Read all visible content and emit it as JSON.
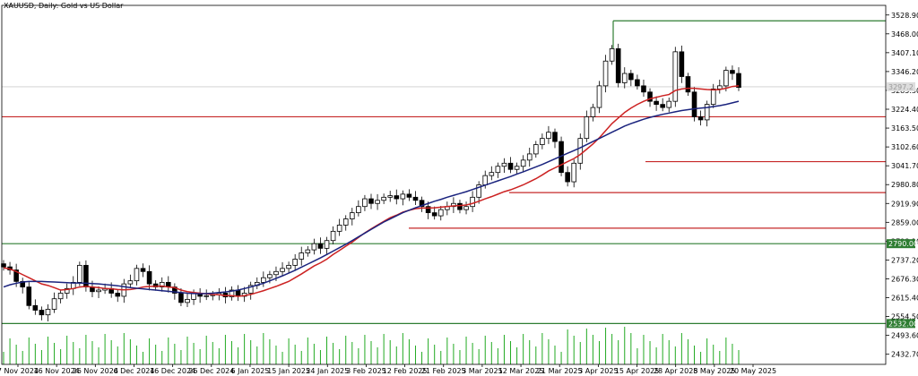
{
  "chart_data": {
    "type": "candlestick",
    "title": "XAUUSD, Daily:  Gold vs US Dollar",
    "ylim": [
      2400,
      3560
    ],
    "y_ticks": [
      "3528.90",
      "3468.00",
      "3407.10",
      "3346.20",
      "3285.30",
      "3224.40",
      "3163.50",
      "3102.60",
      "3041.70",
      "2980.80",
      "2919.90",
      "2859.00",
      "2798.10",
      "2737.20",
      "2676.30",
      "2615.40",
      "2554.50",
      "2493.60",
      "2432.70"
    ],
    "x_ticks": [
      "7 Nov 2024",
      "16 Nov 2024",
      "26 Nov 2024",
      "6 Dec 2024",
      "16 Dec 2024",
      "26 Dec 2024",
      "6 Jan 2025",
      "15 Jan 2025",
      "24 Jan 2025",
      "3 Feb 2025",
      "12 Feb 2025",
      "21 Feb 2025",
      "3 Mar 2025",
      "12 Mar 2025",
      "21 Mar 2025",
      "3 Apr 2025",
      "15 Apr 2025",
      "28 Apr 2025",
      "8 May 2025",
      "20 May 2025"
    ],
    "price_tags": [
      {
        "label": "3297.2",
        "value": 3297,
        "bg": "#dddddd",
        "fg": "#999999"
      },
      {
        "label": "2790.00",
        "value": 2790,
        "bg": "#2e7d32",
        "fg": "#ffffff"
      },
      {
        "label": "2532.00",
        "value": 2532,
        "bg": "#2e7d32",
        "fg": "#ffffff"
      }
    ],
    "close": [
      2715,
      2705,
      2668,
      2650,
      2590,
      2575,
      2560,
      2578,
      2612,
      2630,
      2645,
      2665,
      2720,
      2650,
      2635,
      2640,
      2645,
      2630,
      2620,
      2660,
      2670,
      2710,
      2700,
      2660,
      2650,
      2665,
      2650,
      2630,
      2600,
      2610,
      2630,
      2620,
      2622,
      2625,
      2630,
      2618,
      2640,
      2620,
      2630,
      2655,
      2665,
      2680,
      2690,
      2700,
      2710,
      2720,
      2740,
      2760,
      2770,
      2790,
      2775,
      2800,
      2830,
      2850,
      2870,
      2890,
      2910,
      2935,
      2920,
      2930,
      2940,
      2945,
      2935,
      2950,
      2940,
      2930,
      2910,
      2890,
      2880,
      2900,
      2910,
      2920,
      2900,
      2910,
      2940,
      2980,
      3010,
      3020,
      3040,
      3050,
      3030,
      3040,
      3060,
      3080,
      3110,
      3130,
      3150,
      3120,
      3020,
      2990,
      3050,
      3130,
      3200,
      3230,
      3300,
      3380,
      3420,
      3310,
      3340,
      3320,
      3300,
      3280,
      3250,
      3240,
      3230,
      3250,
      3410,
      3330,
      3280,
      3200,
      3190,
      3240,
      3290,
      3300,
      3350,
      3340,
      3295
    ],
    "ma_short": {
      "name": "",
      "color": "#cc2222",
      "values": [
        2712,
        2708,
        2700,
        2690,
        2680,
        2670,
        2660,
        2655,
        2648,
        2640,
        2642,
        2645,
        2650,
        2652,
        2650,
        2648,
        2645,
        2644,
        2642,
        2641,
        2642,
        2645,
        2650,
        2652,
        2652,
        2653,
        2650,
        2648,
        2640,
        2635,
        2632,
        2630,
        2628,
        2626,
        2625,
        2622,
        2622,
        2620,
        2622,
        2626,
        2632,
        2638,
        2645,
        2652,
        2660,
        2668,
        2680,
        2692,
        2705,
        2718,
        2728,
        2740,
        2755,
        2768,
        2782,
        2795,
        2810,
        2825,
        2838,
        2850,
        2862,
        2874,
        2882,
        2892,
        2898,
        2903,
        2905,
        2905,
        2906,
        2908,
        2910,
        2912,
        2913,
        2915,
        2920,
        2927,
        2935,
        2942,
        2950,
        2958,
        2964,
        2972,
        2980,
        2990,
        3000,
        3012,
        3025,
        3035,
        3045,
        3055,
        3065,
        3078,
        3095,
        3112,
        3132,
        3155,
        3178,
        3196,
        3214,
        3228,
        3240,
        3250,
        3258,
        3263,
        3268,
        3272,
        3285,
        3290,
        3292,
        3292,
        3290,
        3288,
        3287,
        3288,
        3292,
        3298,
        3300
      ]
    },
    "ma_long": {
      "name": "",
      "color": "#1a237e",
      "values": [
        2650,
        2657,
        2662,
        2666,
        2668,
        2668,
        2668,
        2667,
        2666,
        2665,
        2664,
        2663,
        2663,
        2662,
        2661,
        2660,
        2658,
        2656,
        2654,
        2651,
        2648,
        2646,
        2644,
        2642,
        2640,
        2638,
        2636,
        2634,
        2632,
        2630,
        2629,
        2628,
        2629,
        2630,
        2632,
        2634,
        2637,
        2640,
        2645,
        2650,
        2656,
        2662,
        2670,
        2678,
        2686,
        2695,
        2704,
        2714,
        2724,
        2734,
        2744,
        2755,
        2766,
        2777,
        2788,
        2800,
        2812,
        2824,
        2836,
        2848,
        2860,
        2870,
        2880,
        2890,
        2898,
        2906,
        2913,
        2920,
        2927,
        2933,
        2940,
        2946,
        2952,
        2958,
        2965,
        2972,
        2979,
        2986,
        2993,
        3000,
        3007,
        3015,
        3022,
        3030,
        3038,
        3046,
        3055,
        3064,
        3073,
        3082,
        3091,
        3100,
        3110,
        3120,
        3130,
        3140,
        3150,
        3160,
        3170,
        3178,
        3185,
        3192,
        3198,
        3203,
        3208,
        3212,
        3216,
        3220,
        3223,
        3226,
        3228,
        3230,
        3233,
        3236,
        3240,
        3245,
        3250
      ]
    },
    "levels": [
      {
        "value": 3510,
        "color": "#2e7d32"
      },
      {
        "value": 3200,
        "color": "#c62828"
      },
      {
        "value": 3055,
        "color": "#c62828"
      },
      {
        "value": 2955,
        "color": "#c62828"
      },
      {
        "value": 2840,
        "color": "#c62828"
      },
      {
        "value": 2790,
        "color": "#2e7d32"
      },
      {
        "value": 2532,
        "color": "#2e7d32"
      }
    ],
    "current_price_line": 3297
  }
}
